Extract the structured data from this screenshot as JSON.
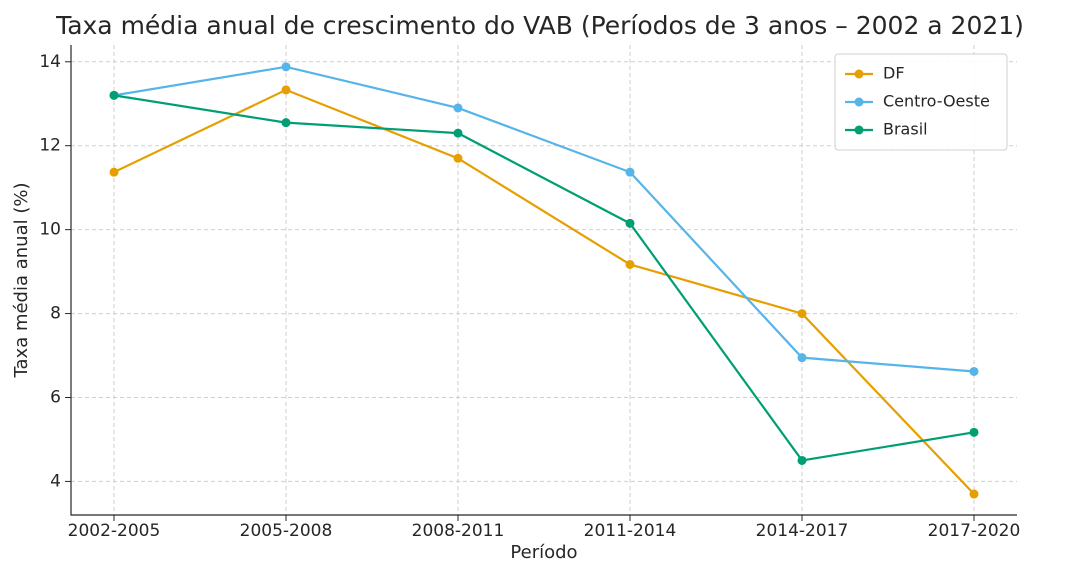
{
  "chart_data": {
    "type": "line",
    "title": "Taxa média anual de crescimento do VAB (Períodos de 3 anos – 2002 a 2021)",
    "x_label": "Período",
    "y_label": "Taxa média anual (%)",
    "categories": [
      "2002-2005",
      "2005-2008",
      "2008-2011",
      "2011-2014",
      "2014-2017",
      "2017-2020"
    ],
    "series": [
      {
        "name": "DF",
        "color": "#E69F00",
        "values": [
          11.37,
          13.33,
          11.7,
          9.17,
          8.0,
          3.7
        ]
      },
      {
        "name": "Centro-Oeste",
        "color": "#56B4E9",
        "values": [
          13.2,
          13.88,
          12.9,
          11.37,
          6.95,
          6.62
        ]
      },
      {
        "name": "Brasil",
        "color": "#009E73",
        "values": [
          13.2,
          12.55,
          12.3,
          10.15,
          4.5,
          5.17
        ]
      }
    ],
    "ylim": [
      3.2,
      14.4
    ],
    "yticks": [
      4,
      6,
      8,
      10,
      12,
      14
    ],
    "grid": true,
    "legend": "upper right"
  }
}
